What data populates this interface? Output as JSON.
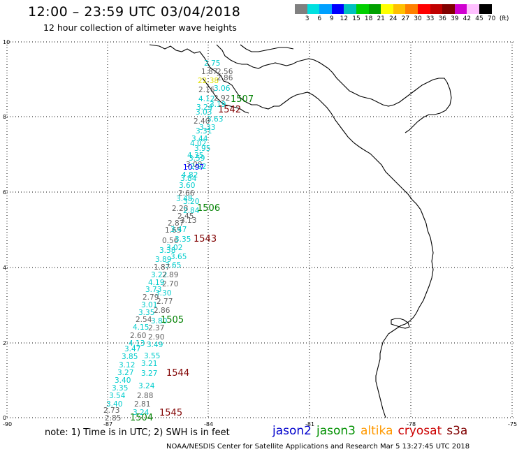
{
  "header": {
    "title": "12:00 – 23:59 UTC 03/04/2018",
    "subtitle": "12 hour collection of altimeter wave heights"
  },
  "legend": {
    "colors": [
      "#808080",
      "#00e0e0",
      "#00a0ff",
      "#0000ff",
      "#00c0c0",
      "#00d000",
      "#00a000",
      "#ffff00",
      "#ffc000",
      "#ff8000",
      "#ff0000",
      "#c00000",
      "#800000",
      "#d000d0",
      "#ffc0ff",
      "#000000"
    ],
    "ticks": [
      "3",
      "6",
      "9",
      "12",
      "15",
      "18",
      "21",
      "24",
      "27",
      "30",
      "33",
      "36",
      "39",
      "42",
      "45",
      "70"
    ],
    "unit": "(ft)"
  },
  "axes": {
    "y_ticks": [
      "0",
      "2",
      "4",
      "6",
      "8",
      "10"
    ],
    "x_ticks": [
      "-90",
      "-87",
      "-84",
      "-81",
      "-78",
      "-75"
    ]
  },
  "passes": [
    {
      "label": "1507",
      "color": "#008000"
    },
    {
      "label": "1542",
      "color": "#800000"
    },
    {
      "label": "1506",
      "color": "#008000"
    },
    {
      "label": "1543",
      "color": "#800000"
    },
    {
      "label": "1505",
      "color": "#008000"
    },
    {
      "label": "1544",
      "color": "#800000"
    },
    {
      "label": "1545",
      "color": "#800000"
    },
    {
      "label": "1504",
      "color": "#008000"
    }
  ],
  "track_values": [
    {
      "text": "2.75",
      "color": "#00cccc"
    },
    {
      "text": "1.87",
      "color": "#606060"
    },
    {
      "text": "2.56",
      "color": "#606060"
    },
    {
      "text": "22.38",
      "color": "#e0e000"
    },
    {
      "text": "2.86",
      "color": "#606060"
    },
    {
      "text": "2.16",
      "color": "#606060"
    },
    {
      "text": "3.06",
      "color": "#00cccc"
    },
    {
      "text": "4.12",
      "color": "#00cccc"
    },
    {
      "text": "2.92",
      "color": "#606060"
    },
    {
      "text": "3.24",
      "color": "#00cccc"
    },
    {
      "text": "3.19",
      "color": "#00cccc"
    },
    {
      "text": "3.03",
      "color": "#00cccc"
    },
    {
      "text": "3.63",
      "color": "#00cccc"
    },
    {
      "text": "2.40",
      "color": "#606060"
    },
    {
      "text": "3.33",
      "color": "#00cccc"
    },
    {
      "text": "3.31",
      "color": "#00cccc"
    },
    {
      "text": "3.44",
      "color": "#00cccc"
    },
    {
      "text": "4.02",
      "color": "#00cccc"
    },
    {
      "text": "3.95",
      "color": "#00cccc"
    },
    {
      "text": "4.35",
      "color": "#00cccc"
    },
    {
      "text": "3.59",
      "color": "#00cccc"
    },
    {
      "text": "3.00",
      "color": "#606060"
    },
    {
      "text": "2.92",
      "color": "#00cccc"
    },
    {
      "text": "10.97",
      "color": "#0000ff"
    },
    {
      "text": "4.82",
      "color": "#00cccc"
    },
    {
      "text": "3.84",
      "color": "#00cccc"
    },
    {
      "text": "3.60",
      "color": "#00cccc"
    },
    {
      "text": "2.66",
      "color": "#606060"
    },
    {
      "text": "3.48",
      "color": "#00cccc"
    },
    {
      "text": "3.20",
      "color": "#00cccc"
    },
    {
      "text": "2.28",
      "color": "#606060"
    },
    {
      "text": "2.45",
      "color": "#606060"
    },
    {
      "text": "2.84",
      "color": "#00cccc"
    },
    {
      "text": "2.87",
      "color": "#606060"
    },
    {
      "text": "3.13",
      "color": "#606060"
    },
    {
      "text": "1.65",
      "color": "#606060"
    },
    {
      "text": "3.47",
      "color": "#00cccc"
    },
    {
      "text": "0.56",
      "color": "#606060"
    },
    {
      "text": "3.35",
      "color": "#00cccc"
    },
    {
      "text": "3.02",
      "color": "#00cccc"
    },
    {
      "text": "3.38",
      "color": "#00cccc"
    },
    {
      "text": "3.65",
      "color": "#00cccc"
    },
    {
      "text": "3.89",
      "color": "#00cccc"
    },
    {
      "text": "3.65",
      "color": "#00cccc"
    },
    {
      "text": "1.87",
      "color": "#606060"
    },
    {
      "text": "3.22",
      "color": "#00cccc"
    },
    {
      "text": "2.89",
      "color": "#606060"
    },
    {
      "text": "4.19",
      "color": "#00cccc"
    },
    {
      "text": "2.70",
      "color": "#606060"
    },
    {
      "text": "3.73",
      "color": "#00cccc"
    },
    {
      "text": "3.30",
      "color": "#00cccc"
    },
    {
      "text": "2.79",
      "color": "#606060"
    },
    {
      "text": "2.77",
      "color": "#606060"
    },
    {
      "text": "3.01",
      "color": "#00cccc"
    },
    {
      "text": "2.86",
      "color": "#606060"
    },
    {
      "text": "3.35",
      "color": "#00cccc"
    },
    {
      "text": "2.54",
      "color": "#606060"
    },
    {
      "text": "3.80",
      "color": "#00cccc"
    },
    {
      "text": "4.15",
      "color": "#00cccc"
    },
    {
      "text": "2.37",
      "color": "#606060"
    },
    {
      "text": "2.60",
      "color": "#606060"
    },
    {
      "text": "2.90",
      "color": "#606060"
    },
    {
      "text": "4.13",
      "color": "#00cccc"
    },
    {
      "text": "3.47",
      "color": "#00cccc"
    },
    {
      "text": "3.49",
      "color": "#00cccc"
    },
    {
      "text": "3.85",
      "color": "#00cccc"
    },
    {
      "text": "3.55",
      "color": "#00cccc"
    },
    {
      "text": "3.12",
      "color": "#00cccc"
    },
    {
      "text": "3.21",
      "color": "#00cccc"
    },
    {
      "text": "3.27",
      "color": "#00cccc"
    },
    {
      "text": "3.27",
      "color": "#00cccc"
    },
    {
      "text": "3.40",
      "color": "#00cccc"
    },
    {
      "text": "3.35",
      "color": "#00cccc"
    },
    {
      "text": "3.24",
      "color": "#00cccc"
    },
    {
      "text": "3.54",
      "color": "#00cccc"
    },
    {
      "text": "2.88",
      "color": "#606060"
    },
    {
      "text": "3.40",
      "color": "#00cccc"
    },
    {
      "text": "2.81",
      "color": "#606060"
    },
    {
      "text": "2.73",
      "color": "#606060"
    },
    {
      "text": "3.24",
      "color": "#00cccc"
    },
    {
      "text": "2.85",
      "color": "#606060"
    }
  ],
  "footer": {
    "note": "note:  1) Time is in UTC;  2) SWH is in feet",
    "missions": [
      {
        "name": "jason2",
        "color": "#0000cc"
      },
      {
        "name": "jason3",
        "color": "#009000"
      },
      {
        "name": "altika",
        "color": "#ff9900"
      },
      {
        "name": "cryosat",
        "color": "#cc0000"
      },
      {
        "name": "s3a",
        "color": "#800000"
      }
    ],
    "credit": "NOAA/NESDIS Center for Satellite Applications and Research    Mar  5 13:27:45 UTC 2018"
  }
}
